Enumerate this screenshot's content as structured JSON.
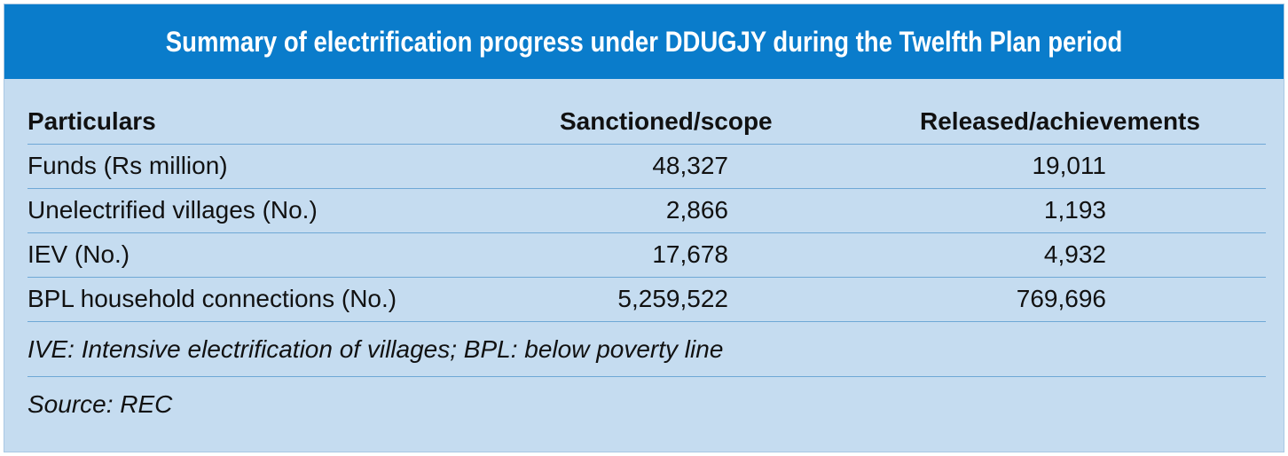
{
  "title": "Summary of electrification progress under DDUGJY during the Twelfth Plan period",
  "table": {
    "headers": [
      "Particulars",
      "Sanctioned/scope",
      "Released/achievements"
    ],
    "rows": [
      [
        "Funds  (Rs million)",
        "48,327",
        "19,011"
      ],
      [
        "Unelectrified villages (No.)",
        "2,866",
        "1,193"
      ],
      [
        "IEV (No.)",
        "17,678",
        "4,932"
      ],
      [
        "BPL household connections (No.)",
        "5,259,522",
        "769,696"
      ]
    ]
  },
  "note": "IVE: Intensive electrification of villages; BPL: below poverty line",
  "source": "Source:  REC",
  "colors": {
    "banner": "#0a7ccb",
    "panel": "#c5dcf0",
    "rule": "#6fa8d6"
  }
}
